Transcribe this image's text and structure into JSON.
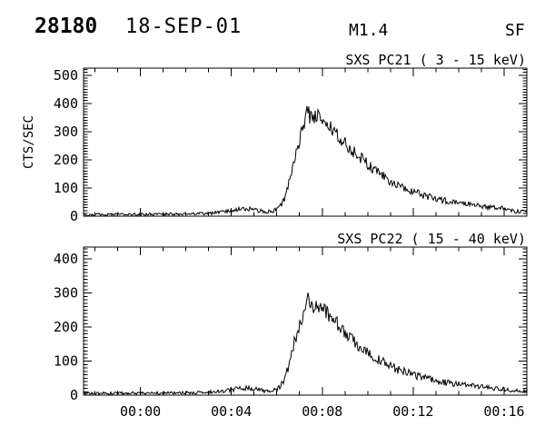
{
  "header": {
    "event_number": "28180",
    "date": "18-SEP-01",
    "goes_class": "M1.4",
    "flare_type": "SF"
  },
  "colors": {
    "foreground": "#000000",
    "background": "#ffffff"
  },
  "x_axis": {
    "tick_labels": [
      "00:00",
      "00:04",
      "00:08",
      "00:12",
      "00:16"
    ],
    "tick_minutes": [
      0,
      4,
      8,
      12,
      16
    ],
    "minor_step_minutes": 1,
    "t_min": -2.5,
    "t_max": 17.0
  },
  "chart_data": [
    {
      "type": "line",
      "title": "SXS PC21  (  3 - 15 keV)",
      "ylabel": "CTS/SEC",
      "ylim": [
        0,
        525
      ],
      "yticks": [
        0,
        100,
        200,
        300,
        400,
        500
      ],
      "ytick_labels": [
        "0",
        "100",
        "200",
        "300",
        "400",
        "500"
      ],
      "yminor_step": 10,
      "noise_base": 1.2,
      "noise_scale": 1.35,
      "series_name": "SXS PC21 3-15 keV counts",
      "series_keypoints": [
        [
          -2.5,
          6
        ],
        [
          -1.5,
          6
        ],
        [
          0,
          7
        ],
        [
          1,
          7
        ],
        [
          2,
          8
        ],
        [
          3,
          10
        ],
        [
          3.6,
          14
        ],
        [
          4.0,
          20
        ],
        [
          4.4,
          26
        ],
        [
          4.8,
          27
        ],
        [
          5.1,
          22
        ],
        [
          5.4,
          17
        ],
        [
          5.7,
          16
        ],
        [
          5.9,
          20
        ],
        [
          6.1,
          30
        ],
        [
          6.3,
          55
        ],
        [
          6.5,
          105
        ],
        [
          6.65,
          160
        ],
        [
          6.8,
          215
        ],
        [
          6.95,
          255
        ],
        [
          7.1,
          300
        ],
        [
          7.2,
          330
        ],
        [
          7.3,
          355
        ],
        [
          7.38,
          392
        ],
        [
          7.45,
          350
        ],
        [
          7.6,
          348
        ],
        [
          7.75,
          358
        ],
        [
          7.9,
          342
        ],
        [
          8.05,
          350
        ],
        [
          8.2,
          338
        ],
        [
          8.35,
          322
        ],
        [
          8.5,
          305
        ],
        [
          8.65,
          292
        ],
        [
          8.8,
          278
        ],
        [
          9.0,
          258
        ],
        [
          9.2,
          242
        ],
        [
          9.4,
          228
        ],
        [
          9.7,
          205
        ],
        [
          10.0,
          185
        ],
        [
          10.3,
          163
        ],
        [
          10.6,
          148
        ],
        [
          11.0,
          122
        ],
        [
          11.4,
          105
        ],
        [
          11.9,
          90
        ],
        [
          12.3,
          78
        ],
        [
          12.7,
          68
        ],
        [
          13.1,
          60
        ],
        [
          13.5,
          54
        ],
        [
          13.9,
          47
        ],
        [
          14.3,
          44
        ],
        [
          14.7,
          39
        ],
        [
          15.1,
          34
        ],
        [
          15.5,
          31
        ],
        [
          15.9,
          28
        ],
        [
          16.2,
          25
        ],
        [
          16.4,
          18
        ],
        [
          16.7,
          16
        ],
        [
          17.0,
          15
        ]
      ]
    },
    {
      "type": "line",
      "title": "SXS PC22  ( 15 - 40 keV)",
      "ylabel": "",
      "ylim": [
        0,
        435
      ],
      "yticks": [
        0,
        100,
        200,
        300,
        400
      ],
      "ytick_labels": [
        "0",
        "100",
        "200",
        "300",
        "400"
      ],
      "yminor_step": 10,
      "noise_base": 1.0,
      "noise_scale": 1.35,
      "series_name": "SXS PC22 15-40 keV counts",
      "series_keypoints": [
        [
          -2.5,
          5
        ],
        [
          0,
          6
        ],
        [
          1,
          6
        ],
        [
          2,
          7
        ],
        [
          3,
          8
        ],
        [
          3.6,
          11
        ],
        [
          4.0,
          15
        ],
        [
          4.4,
          20
        ],
        [
          4.8,
          21
        ],
        [
          5.1,
          17
        ],
        [
          5.4,
          13
        ],
        [
          5.7,
          12
        ],
        [
          5.9,
          15
        ],
        [
          6.1,
          22
        ],
        [
          6.3,
          40
        ],
        [
          6.5,
          78
        ],
        [
          6.65,
          120
        ],
        [
          6.8,
          162
        ],
        [
          6.95,
          195
        ],
        [
          7.1,
          225
        ],
        [
          7.2,
          245
        ],
        [
          7.3,
          262
        ],
        [
          7.38,
          285
        ],
        [
          7.45,
          255
        ],
        [
          7.6,
          252
        ],
        [
          7.75,
          262
        ],
        [
          7.9,
          248
        ],
        [
          8.05,
          254
        ],
        [
          8.2,
          244
        ],
        [
          8.35,
          232
        ],
        [
          8.5,
          220
        ],
        [
          8.65,
          210
        ],
        [
          8.8,
          198
        ],
        [
          9.0,
          183
        ],
        [
          9.2,
          170
        ],
        [
          9.4,
          158
        ],
        [
          9.7,
          142
        ],
        [
          10.0,
          128
        ],
        [
          10.3,
          112
        ],
        [
          10.6,
          100
        ],
        [
          11.0,
          85
        ],
        [
          11.4,
          73
        ],
        [
          11.9,
          63
        ],
        [
          12.3,
          54
        ],
        [
          12.7,
          47
        ],
        [
          13.1,
          41
        ],
        [
          13.5,
          36
        ],
        [
          13.9,
          32
        ],
        [
          14.3,
          29
        ],
        [
          14.7,
          26
        ],
        [
          15.1,
          23
        ],
        [
          15.5,
          21
        ],
        [
          15.9,
          19
        ],
        [
          16.2,
          17
        ],
        [
          16.4,
          14
        ],
        [
          16.7,
          12
        ],
        [
          17.0,
          12
        ]
      ]
    }
  ]
}
